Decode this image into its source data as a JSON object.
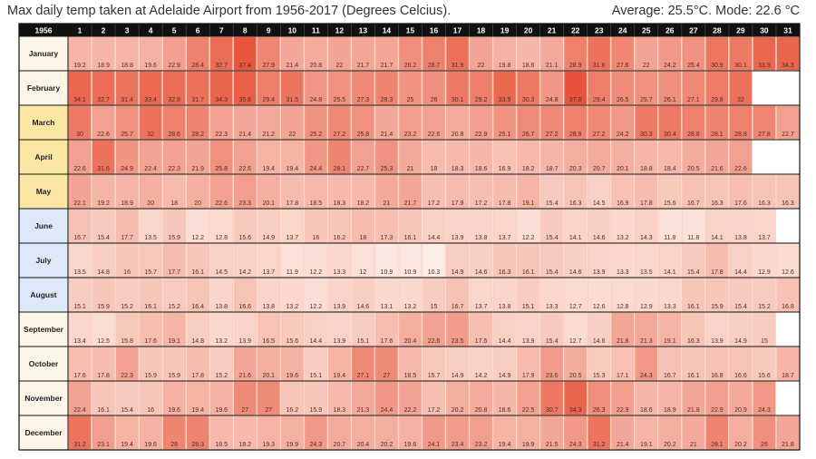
{
  "header": {
    "title": "Max daily temp taken at Adelaide Airport from 1956-2017 (Degrees Celcius).",
    "stats": "Average: 25.5°C. Mode: 22.6 °C"
  },
  "chart_data": {
    "type": "heatmap",
    "year_label": "1956",
    "days": [
      "1",
      "2",
      "3",
      "4",
      "5",
      "6",
      "7",
      "8",
      "9",
      "10",
      "11",
      "12",
      "13",
      "14",
      "15",
      "16",
      "17",
      "18",
      "19",
      "20",
      "21",
      "22",
      "23",
      "24",
      "25",
      "26",
      "27",
      "28",
      "29",
      "30",
      "31"
    ],
    "months": [
      "January",
      "February",
      "March",
      "April",
      "May",
      "June",
      "July",
      "August",
      "September",
      "October",
      "November",
      "December"
    ],
    "values": [
      [
        "19.2",
        "18.9",
        "18.8",
        "19.6",
        "22.9",
        "28.4",
        "32.7",
        "37.4",
        "27.9",
        "21.4",
        "20.8",
        "22",
        "21.7",
        "21.7",
        "26.2",
        "28.7",
        "31.9",
        "22",
        "19.8",
        "18.6",
        "21.1",
        "28.9",
        "31.6",
        "27.6",
        "22",
        "24.2",
        "25.4",
        "30.9",
        "30.1",
        "33.9",
        "34.3"
      ],
      [
        "34.1",
        "32.7",
        "31.4",
        "33.4",
        "32.8",
        "31.7",
        "34.3",
        "35.6",
        "29.4",
        "31.5",
        "24.8",
        "25.5",
        "27.3",
        "28.3",
        "25",
        "26",
        "30.1",
        "29.2",
        "33.9",
        "30.3",
        "24.8",
        "37.8",
        "29.4",
        "26.5",
        "25.7",
        "26.1",
        "27.1",
        "29.8",
        "32",
        null,
        null
      ],
      [
        "30",
        "22.6",
        "25.7",
        "32",
        "28.6",
        "28.2",
        "22.3",
        "21.4",
        "21.2",
        "22",
        "25.2",
        "27.2",
        "25.8",
        "21.4",
        "23.2",
        "22.6",
        "20.8",
        "22.9",
        "25.1",
        "26.7",
        "27.2",
        "28.9",
        "27.2",
        "24.2",
        "30.3",
        "30.4",
        "28.8",
        "28.1",
        "28.8",
        "27.8",
        "22.7"
      ],
      [
        "22.6",
        "31.6",
        "24.9",
        "22.4",
        "22.3",
        "21.9",
        "25.8",
        "22.6",
        "19.4",
        "19.4",
        "24.4",
        "28.1",
        "22.7",
        "25.3",
        "21",
        "18",
        "18.3",
        "18.6",
        "16.9",
        "18.2",
        "18.7",
        "20.3",
        "20.7",
        "20.1",
        "18.8",
        "18.4",
        "20.5",
        "21.6",
        "22.6",
        null,
        null
      ],
      [
        "22.1",
        "19.2",
        "18.9",
        "20",
        "18",
        "20",
        "22.6",
        "23.3",
        "20.1",
        "17.8",
        "18.5",
        "18.3",
        "18.2",
        "21",
        "21.7",
        "17.2",
        "17.9",
        "17.2",
        "17.8",
        "19.1",
        "15.4",
        "16.3",
        "14.5",
        "16.9",
        "17.8",
        "15.6",
        "16.7",
        "16.3",
        "17.6",
        "16.3",
        "16.3"
      ],
      [
        "16.7",
        "15.4",
        "17.7",
        "13.5",
        "15.9",
        "12.2",
        "12.8",
        "15.6",
        "14.9",
        "13.7",
        "16",
        "16.2",
        "18",
        "17.3",
        "16.1",
        "14.4",
        "13.9",
        "13.8",
        "13.7",
        "12.2",
        "15.4",
        "14.1",
        "14.6",
        "13.2",
        "14.3",
        "11.8",
        "11.8",
        "14.1",
        "13.8",
        "13.7",
        null
      ],
      [
        "13.5",
        "14.8",
        "16",
        "15.7",
        "17.7",
        "16.1",
        "14.5",
        "14.2",
        "13.7",
        "11.9",
        "12.2",
        "13.3",
        "12",
        "10.9",
        "10.9",
        "10.3",
        "14.9",
        "14.6",
        "16.3",
        "16.1",
        "15.4",
        "14.6",
        "13.9",
        "13.3",
        "13.5",
        "14.1",
        "15.4",
        "17.8",
        "14.4",
        "12.9",
        "12.6"
      ],
      [
        "15.1",
        "15.9",
        "15.2",
        "16.1",
        "15.2",
        "16.4",
        "13.8",
        "16.6",
        "13.8",
        "13.2",
        "12.2",
        "13.9",
        "14.6",
        "13.1",
        "13.2",
        "15",
        "16.7",
        "13.7",
        "13.8",
        "15.1",
        "13.3",
        "12.7",
        "12.6",
        "12.8",
        "12.9",
        "13.3",
        "16.1",
        "15.9",
        "15.4",
        "15.2",
        "16.8"
      ],
      [
        "13.4",
        "12.5",
        "15.8",
        "17.6",
        "19.1",
        "14.8",
        "13.2",
        "13.9",
        "16.5",
        "15.6",
        "14.4",
        "13.9",
        "15.1",
        "17.6",
        "20.4",
        "22.6",
        "23.5",
        "17.5",
        "14.4",
        "13.9",
        "15.4",
        "12.7",
        "14.6",
        "21.8",
        "21.3",
        "19.1",
        "16.3",
        "13.9",
        "14.9",
        "15",
        null
      ],
      [
        "17.6",
        "17.8",
        "22.3",
        "15.9",
        "15.9",
        "17.8",
        "15.2",
        "21.6",
        "20.1",
        "19.6",
        "15.1",
        "19.4",
        "27.1",
        "27",
        "18.5",
        "15.7",
        "14.9",
        "14.2",
        "14.9",
        "17.9",
        "23.6",
        "20.5",
        "15.3",
        "17.1",
        "24.3",
        "16.7",
        "16.1",
        "16.8",
        "16.6",
        "15.6",
        "18.7"
      ],
      [
        "22.4",
        "16.1",
        "15.4",
        "16",
        "19.6",
        "19.4",
        "19.6",
        "27",
        "27",
        "16.2",
        "15.9",
        "18.3",
        "21.3",
        "24.4",
        "22.2",
        "17.2",
        "20.2",
        "20.8",
        "18.6",
        "22.5",
        "30.7",
        "34.3",
        "26.3",
        "22.9",
        "18.6",
        "18.9",
        "21.8",
        "22.9",
        "20.9",
        "24.3",
        null
      ],
      [
        "31.2",
        "23.1",
        "19.4",
        "19.6",
        "28",
        "28.3",
        "18.5",
        "18.2",
        "19.3",
        "19.9",
        "24.3",
        "20.7",
        "20.4",
        "20.2",
        "19.6",
        "24.1",
        "23.4",
        "23.2",
        "19.4",
        "19.9",
        "21.5",
        "24.3",
        "31.2",
        "21.4",
        "19.1",
        "20.2",
        "21",
        "28.1",
        "20.2",
        "26",
        "21.8"
      ]
    ],
    "colors": {
      "cold": "#fdf1ea",
      "hot": "#e8533a",
      "value_range": [
        10,
        38
      ],
      "summer_month_bg": "#fdf6e8",
      "autumn_month_bg": "#fbe7a3",
      "winter_month_bg": "#dde9f8",
      "spring_month_bg": "#fdf6e8",
      "header_bg": "#111111",
      "header_text": "#ffffff",
      "grid_line": "#111111",
      "cell_border": "#f4c9b8"
    }
  }
}
